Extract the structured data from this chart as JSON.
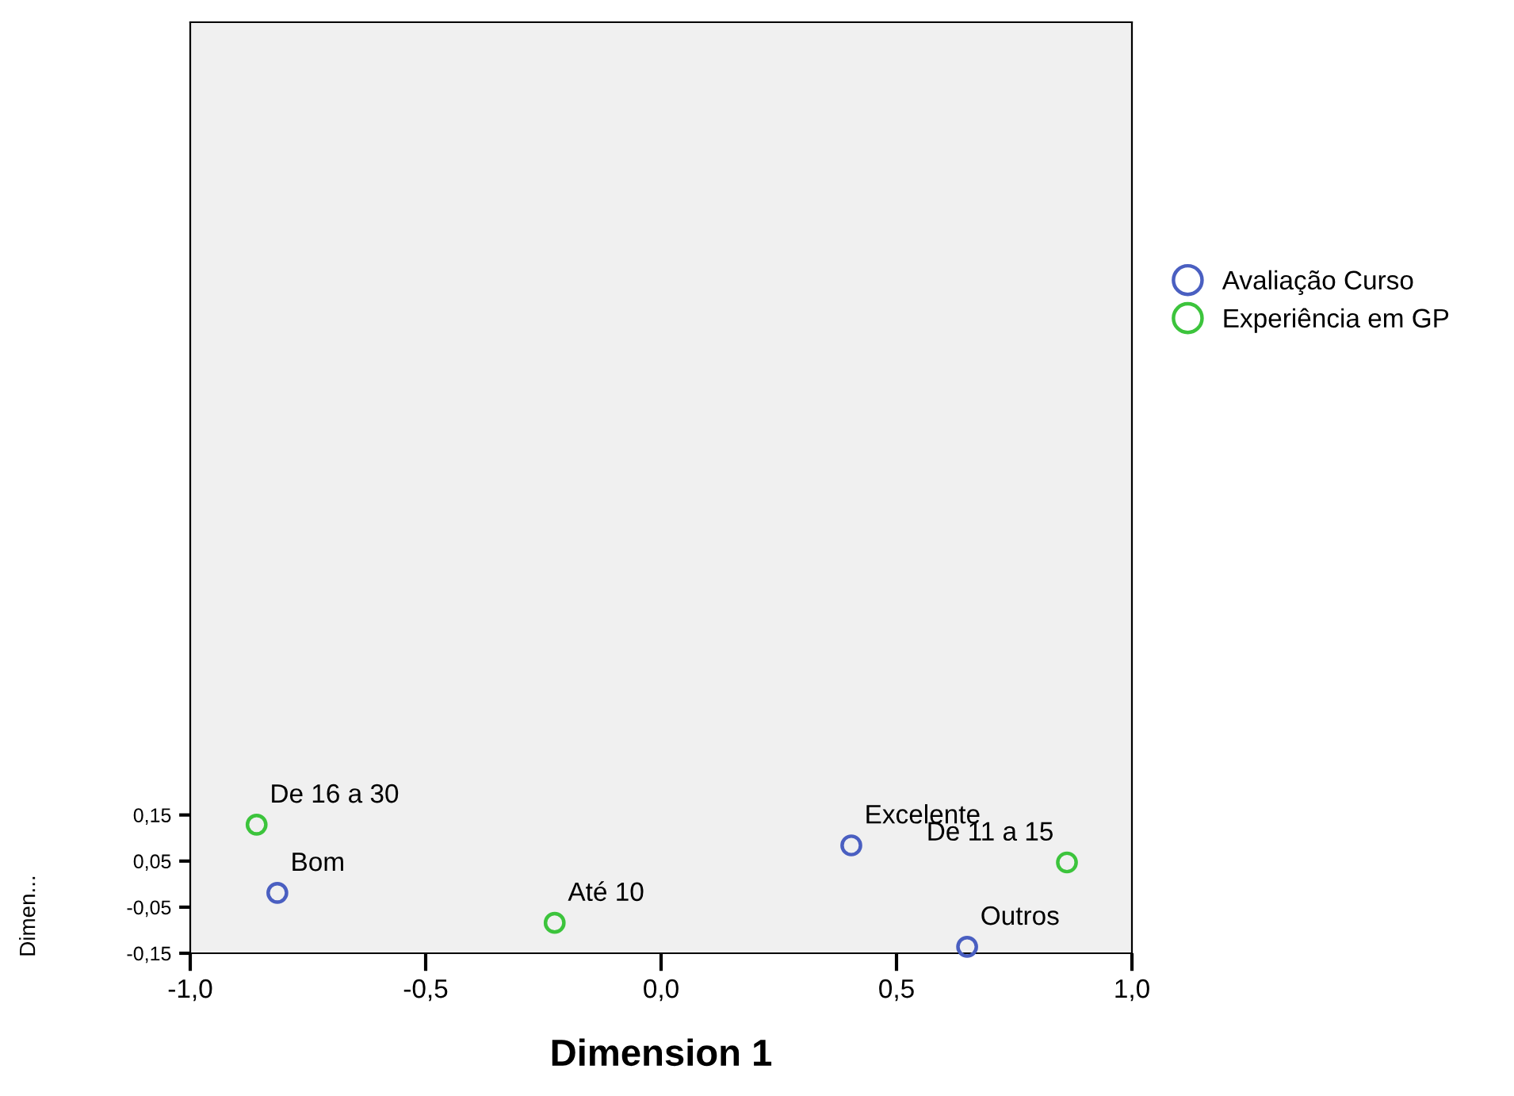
{
  "chart_data": {
    "type": "scatter",
    "xlabel": "Dimension 1",
    "ylabel": "Dimen...",
    "series": [
      {
        "name": "Avaliação Curso",
        "color": "#4a5fc1",
        "x": [
          -0.815,
          0.404,
          0.65
        ],
        "values": [
          -0.019,
          0.084,
          -0.136
        ]
      },
      {
        "name": "Experiência em GP",
        "color": "#3cc43c",
        "x": [
          -0.859,
          -0.226,
          0.862
        ],
        "values": [
          0.129,
          -0.084,
          0.047
        ]
      }
    ],
    "annotations": [
      {
        "text": "Bom",
        "x": -0.815,
        "y": -0.019
      },
      {
        "text": "Excelente",
        "x": 0.404,
        "y": 0.084
      },
      {
        "text": "Outros",
        "x": 0.65,
        "y": -0.136
      },
      {
        "text": "De 16 a 30",
        "x": -0.859,
        "y": 0.129
      },
      {
        "text": "Até 10",
        "x": -0.226,
        "y": -0.084
      },
      {
        "text": "De 11 a 15",
        "x": 0.862,
        "y": 0.047
      }
    ],
    "xlim": [
      -1.0,
      1.0
    ],
    "xticks": [
      {
        "value": -1.0,
        "label": "-1,0"
      },
      {
        "value": -0.5,
        "label": "-0,5"
      },
      {
        "value": 0.0,
        "label": "0,0"
      },
      {
        "value": 0.5,
        "label": "0,5"
      },
      {
        "value": 1.0,
        "label": "1,0"
      }
    ],
    "ylim": [
      -0.15,
      1.87
    ],
    "yticks": [
      {
        "value": -0.15,
        "label": "-0,15"
      },
      {
        "value": -0.05,
        "label": "-0,05"
      },
      {
        "value": 0.05,
        "label": "0,05"
      },
      {
        "value": 0.15,
        "label": "0,15"
      }
    ],
    "marker": "circle",
    "grid": false,
    "legend": "right"
  }
}
